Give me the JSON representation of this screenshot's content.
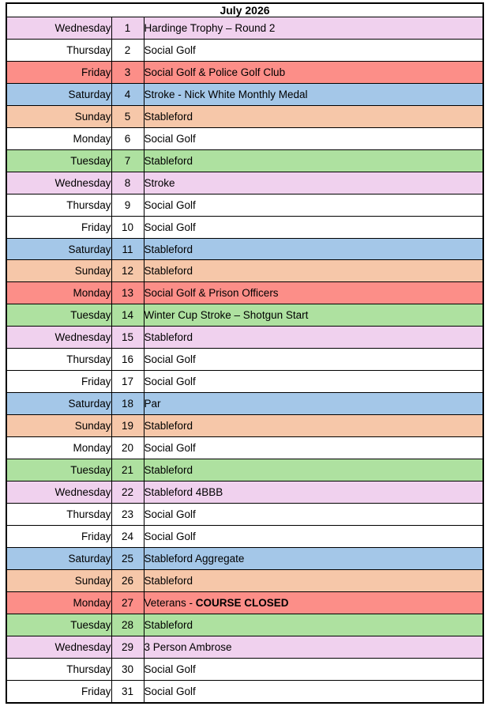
{
  "title": "July 2026",
  "colors": {
    "pink": "#F0D1EE",
    "red": "#FC8E88",
    "blue": "#A4C7E8",
    "orange": "#F6C7A9",
    "green": "#AEE1A0",
    "white": "#FFFFFF",
    "border": "#000000"
  },
  "rows": [
    {
      "day": "Wednesday",
      "date": "1",
      "event": "Hardinge Trophy – Round 2",
      "event_bold": "",
      "color": "pink"
    },
    {
      "day": "Thursday",
      "date": "2",
      "event": "Social Golf",
      "event_bold": "",
      "color": "white"
    },
    {
      "day": "Friday",
      "date": "3",
      "event": "Social Golf & Police Golf Club",
      "event_bold": "",
      "color": "red"
    },
    {
      "day": "Saturday",
      "date": "4",
      "event": "Stroke - Nick White Monthly Medal",
      "event_bold": "",
      "color": "blue"
    },
    {
      "day": "Sunday",
      "date": "5",
      "event": "Stableford",
      "event_bold": "",
      "color": "orange"
    },
    {
      "day": "Monday",
      "date": "6",
      "event": "Social Golf",
      "event_bold": "",
      "color": "white"
    },
    {
      "day": "Tuesday",
      "date": "7",
      "event": "Stableford",
      "event_bold": "",
      "color": "green"
    },
    {
      "day": "Wednesday",
      "date": "8",
      "event": "Stroke",
      "event_bold": "",
      "color": "pink"
    },
    {
      "day": "Thursday",
      "date": "9",
      "event": "Social Golf",
      "event_bold": "",
      "color": "white"
    },
    {
      "day": "Friday",
      "date": "10",
      "event": "Social Golf",
      "event_bold": "",
      "color": "white"
    },
    {
      "day": "Saturday",
      "date": "11",
      "event": "Stableford",
      "event_bold": "",
      "color": "blue"
    },
    {
      "day": "Sunday",
      "date": "12",
      "event": "Stableford",
      "event_bold": "",
      "color": "orange"
    },
    {
      "day": "Monday",
      "date": "13",
      "event": "Social Golf & Prison Officers",
      "event_bold": "",
      "color": "red"
    },
    {
      "day": "Tuesday",
      "date": "14",
      "event": "Winter Cup Stroke – Shotgun Start",
      "event_bold": "",
      "color": "green"
    },
    {
      "day": "Wednesday",
      "date": "15",
      "event": "Stableford",
      "event_bold": "",
      "color": "pink"
    },
    {
      "day": "Thursday",
      "date": "16",
      "event": "Social Golf",
      "event_bold": "",
      "color": "white"
    },
    {
      "day": "Friday",
      "date": "17",
      "event": "Social Golf",
      "event_bold": "",
      "color": "white"
    },
    {
      "day": "Saturday",
      "date": "18",
      "event": "Par",
      "event_bold": "",
      "color": "blue"
    },
    {
      "day": "Sunday",
      "date": "19",
      "event": "Stableford",
      "event_bold": "",
      "color": "orange"
    },
    {
      "day": "Monday",
      "date": "20",
      "event": "Social Golf",
      "event_bold": "",
      "color": "white"
    },
    {
      "day": "Tuesday",
      "date": "21",
      "event": "Stableford",
      "event_bold": "",
      "color": "green"
    },
    {
      "day": "Wednesday",
      "date": "22",
      "event": "Stableford 4BBB",
      "event_bold": "",
      "color": "pink"
    },
    {
      "day": "Thursday",
      "date": "23",
      "event": "Social Golf",
      "event_bold": "",
      "color": "white"
    },
    {
      "day": "Friday",
      "date": "24",
      "event": "Social Golf",
      "event_bold": "",
      "color": "white"
    },
    {
      "day": "Saturday",
      "date": "25",
      "event": "Stableford Aggregate",
      "event_bold": "",
      "color": "blue"
    },
    {
      "day": "Sunday",
      "date": "26",
      "event": "Stableford",
      "event_bold": "",
      "color": "orange"
    },
    {
      "day": "Monday",
      "date": "27",
      "event": "Veterans - ",
      "event_bold": "COURSE CLOSED",
      "color": "red"
    },
    {
      "day": "Tuesday",
      "date": "28",
      "event": "Stableford",
      "event_bold": "",
      "color": "green"
    },
    {
      "day": "Wednesday",
      "date": "29",
      "event": "3 Person Ambrose",
      "event_bold": "",
      "color": "pink"
    },
    {
      "day": "Thursday",
      "date": "30",
      "event": "Social Golf",
      "event_bold": "",
      "color": "white"
    },
    {
      "day": "Friday",
      "date": "31",
      "event": "Social Golf",
      "event_bold": "",
      "color": "white"
    }
  ]
}
